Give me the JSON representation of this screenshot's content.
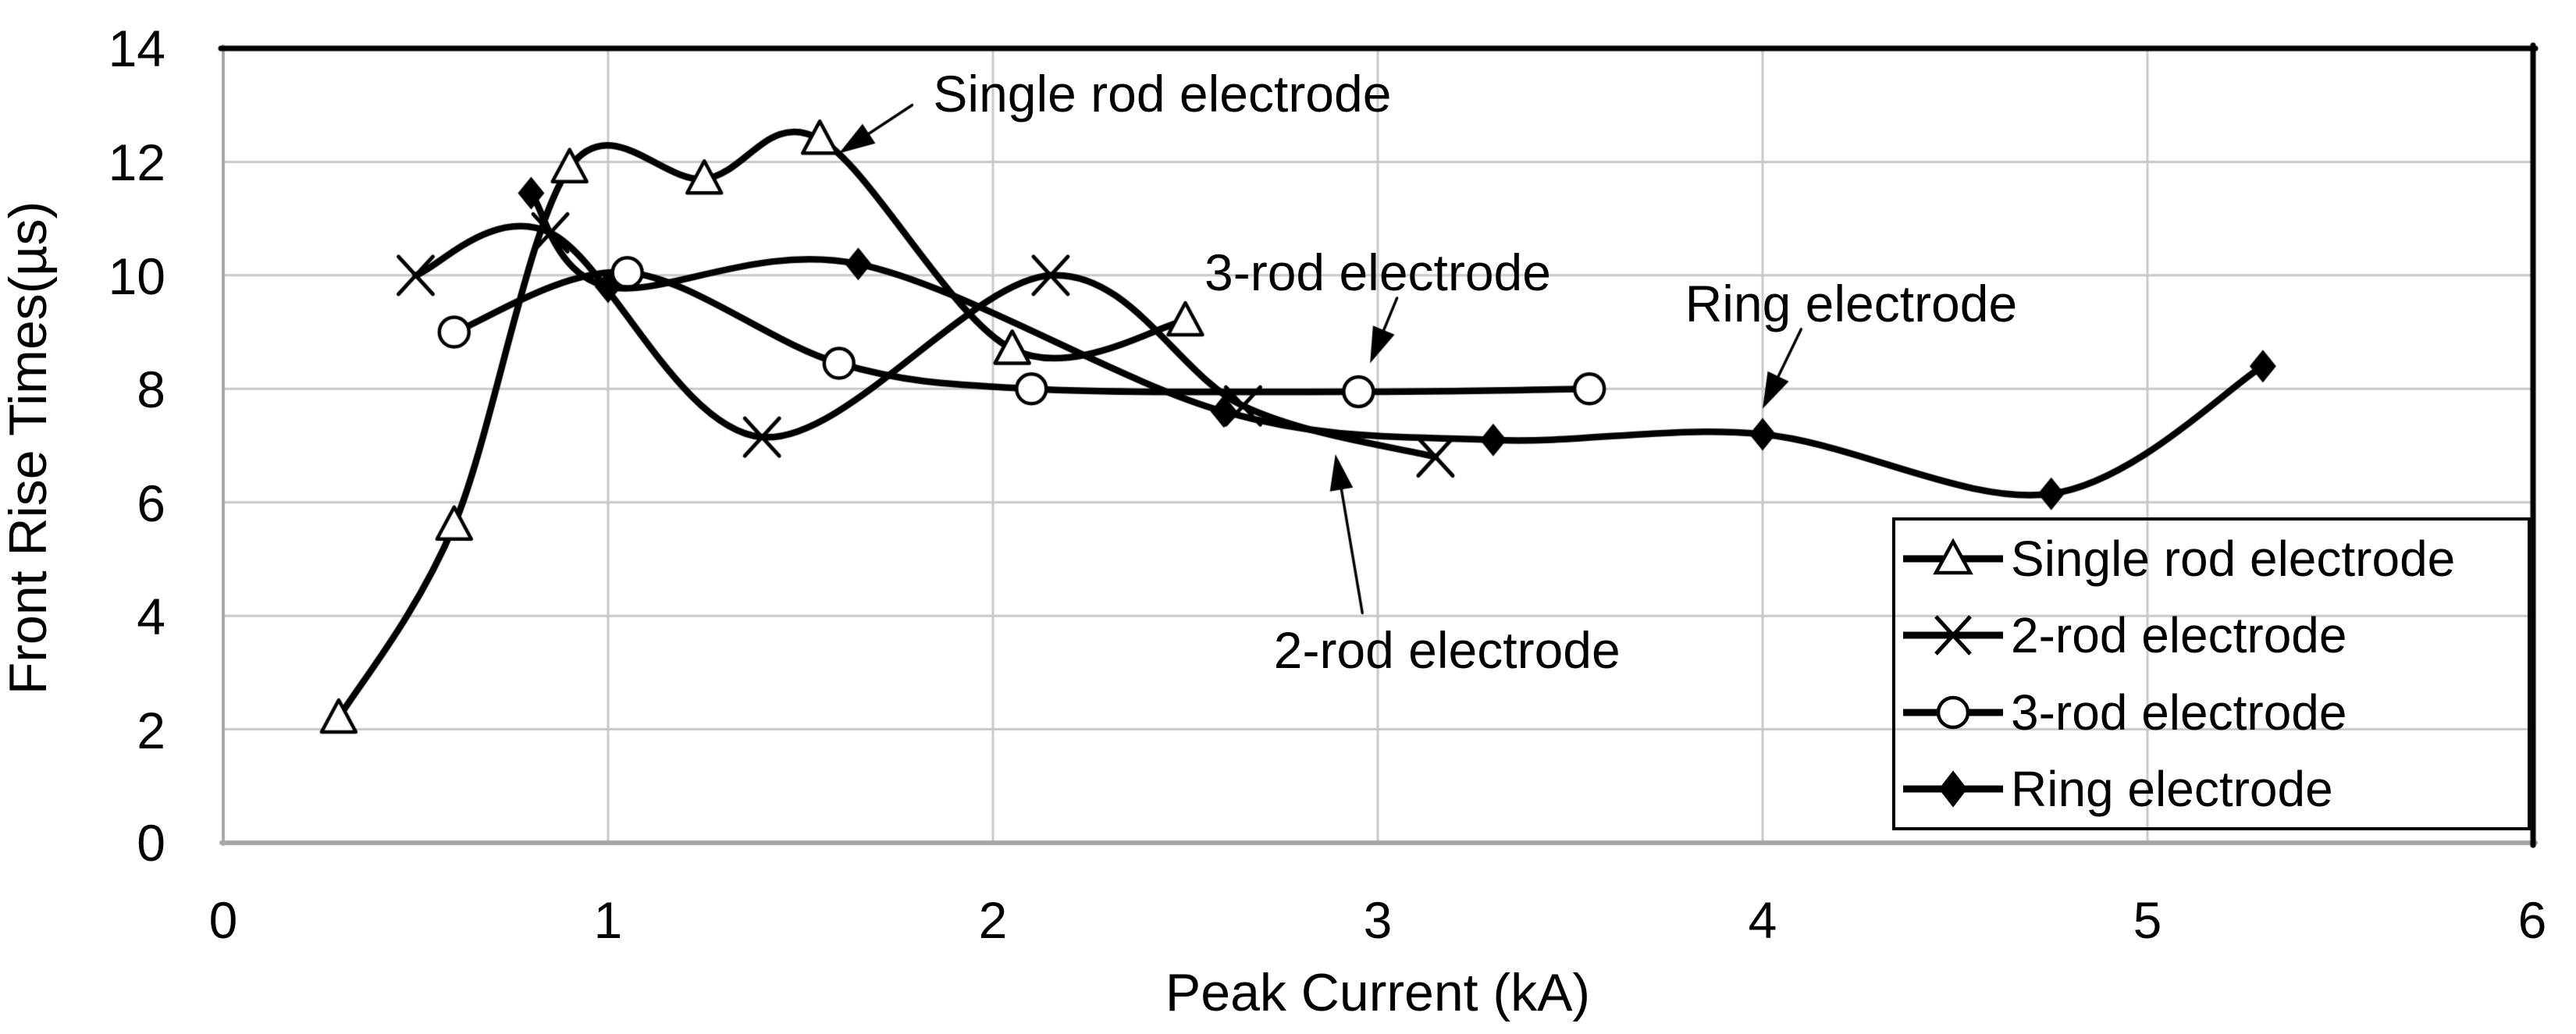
{
  "chart_data": {
    "type": "line",
    "title": "",
    "xlabel": "Peak Current (kA)",
    "ylabel": "Front Rise Times(µs)",
    "xlim": [
      0,
      6
    ],
    "ylim": [
      0,
      14
    ],
    "x_ticks": [
      "0",
      "1",
      "2",
      "3",
      "4",
      "5",
      "6"
    ],
    "y_ticks": [
      "14",
      "12",
      "10",
      "8",
      "6",
      "4",
      "2",
      "0"
    ],
    "grid": true,
    "legend_position": "bottom-right",
    "line_smoothing": true,
    "series": [
      {
        "name": "Single rod electrode",
        "marker": "triangle-open",
        "points": [
          [
            0.3,
            2.2
          ],
          [
            0.6,
            5.6
          ],
          [
            0.9,
            11.9
          ],
          [
            1.25,
            11.7
          ],
          [
            1.55,
            12.4
          ],
          [
            2.05,
            8.7
          ],
          [
            2.5,
            9.2
          ]
        ]
      },
      {
        "name": "2-rod electrode",
        "marker": "x",
        "points": [
          [
            0.5,
            10.0
          ],
          [
            0.85,
            10.75
          ],
          [
            1.4,
            7.15
          ],
          [
            2.15,
            10.0
          ],
          [
            2.65,
            7.7
          ],
          [
            3.15,
            6.8
          ]
        ]
      },
      {
        "name": "3-rod electrode",
        "marker": "circle-open",
        "points": [
          [
            0.6,
            9.0
          ],
          [
            1.05,
            10.05
          ],
          [
            1.6,
            8.45
          ],
          [
            2.1,
            8.0
          ],
          [
            2.95,
            7.95
          ],
          [
            3.55,
            8.0
          ]
        ]
      },
      {
        "name": "Ring electrode",
        "marker": "diamond-filled",
        "points": [
          [
            0.8,
            11.45
          ],
          [
            1.0,
            9.8
          ],
          [
            1.65,
            10.2
          ],
          [
            2.6,
            7.6
          ],
          [
            3.3,
            7.1
          ],
          [
            4.0,
            7.2
          ],
          [
            4.75,
            6.15
          ],
          [
            5.3,
            8.4
          ]
        ]
      }
    ],
    "annotations": [
      {
        "text": "Single rod electrode",
        "label_x": 2.44,
        "label_y": 13.2,
        "tail": [
          1.79,
          13.0
        ],
        "tip": [
          1.6,
          12.15
        ]
      },
      {
        "text": "3-rod electrode",
        "label_x": 3.0,
        "label_y": 10.05,
        "tail": [
          3.05,
          9.6
        ],
        "tip": [
          2.98,
          8.45
        ]
      },
      {
        "text": "Ring electrode",
        "label_x": 4.23,
        "label_y": 9.5,
        "tail": [
          4.1,
          9.05
        ],
        "tip": [
          4.0,
          7.65
        ]
      },
      {
        "text": "2-rod electrode",
        "label_x": 3.18,
        "label_y": 3.4,
        "tail": [
          2.96,
          4.05
        ],
        "tip": [
          2.89,
          6.85
        ]
      }
    ],
    "colors": {
      "line": "#000000",
      "grid": "#c8c8c8",
      "axis": "#a6a6a6",
      "border": "#000000",
      "text": "#000000",
      "background": "#ffffff"
    }
  }
}
